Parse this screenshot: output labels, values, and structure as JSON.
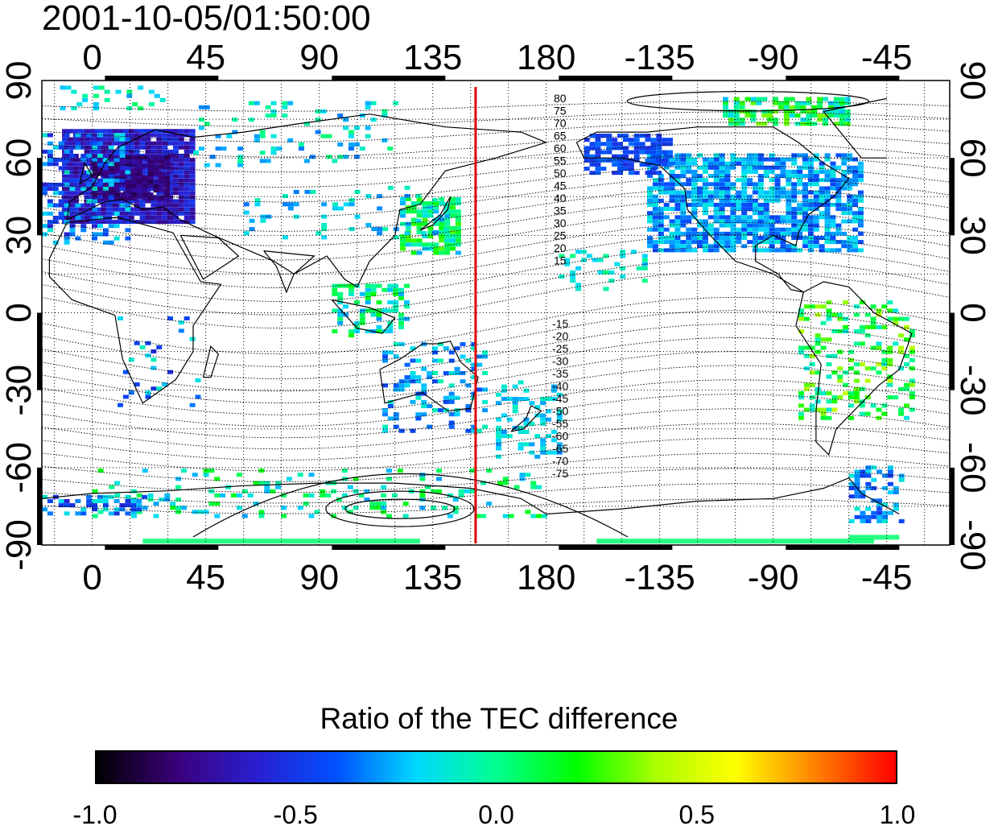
{
  "timestamp": "2001-10-05/01:50:00",
  "map": {
    "top_longitude_ticks": [
      "0",
      "45",
      "90",
      "135",
      "180",
      "-135",
      "-90",
      "-45"
    ],
    "bottom_longitude_ticks": [
      "0",
      "45",
      "90",
      "135",
      "180",
      "-135",
      "-90",
      "-45"
    ],
    "left_latitude_ticks": [
      "90",
      "60",
      "30",
      "0",
      "-30",
      "-60",
      "-90"
    ],
    "right_latitude_ticks": [
      "90",
      "60",
      "30",
      "0",
      "-30",
      "-60",
      "-90"
    ],
    "magnetic_latitude_labels_north": [
      "80",
      "75",
      "70",
      "65",
      "60",
      "55",
      "50",
      "45",
      "40",
      "35",
      "30",
      "25",
      "20",
      "15"
    ],
    "magnetic_latitude_labels_south": [
      "-15",
      "-20",
      "-25",
      "-30",
      "-35",
      "-40",
      "-45",
      "-50",
      "-55",
      "-60",
      "-65",
      "-70",
      "-75"
    ],
    "marker_longitude": 152,
    "marker_color": "#dd0000"
  },
  "colorbar": {
    "title": "Ratio of the TEC difference",
    "tick_labels": [
      "-1.0",
      "-0.5",
      "0.0",
      "0.5",
      "1.0"
    ],
    "colors": [
      "#000000",
      "#3a007a",
      "#2a1fd0",
      "#0050ff",
      "#00d8ff",
      "#00ff90",
      "#00ff00",
      "#aaff00",
      "#ffff00",
      "#ff8000",
      "#ff0000"
    ]
  }
}
